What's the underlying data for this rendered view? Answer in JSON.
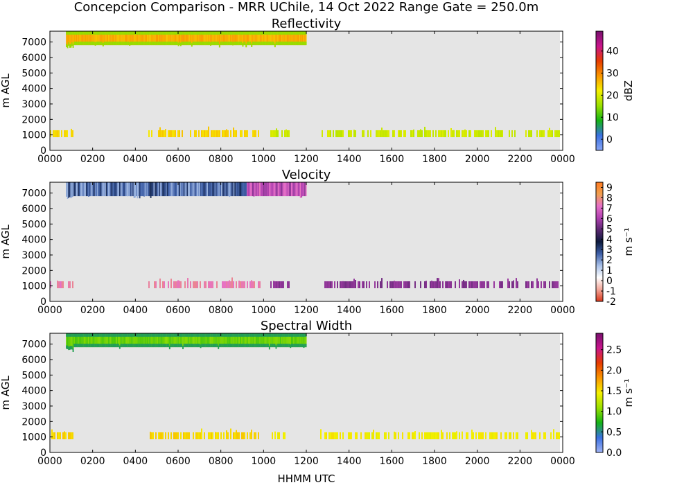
{
  "suptitle": "Concepcion Comparison - MRR UChile, 14 Oct 2022 Range Gate = 250.0m",
  "xlabel": "HHMM UTC",
  "colors": {
    "background": "#e5e5e5",
    "nodata": "#ffffff"
  },
  "chart_data": [
    {
      "type": "heatmap",
      "title": "Reflectivity",
      "ylabel": "m AGL",
      "xlim_hours": [
        0,
        24
      ],
      "ylim_m": [
        0,
        7700
      ],
      "x_ticks": [
        "0000",
        "0200",
        "0400",
        "0600",
        "0800",
        "1000",
        "1200",
        "1400",
        "1600",
        "1800",
        "2000",
        "2200",
        "0000"
      ],
      "y_ticks": [
        "0",
        "1000",
        "2000",
        "3000",
        "4000",
        "5000",
        "6000",
        "7000"
      ],
      "colorbar": {
        "label": "dBZ",
        "range": [
          -5,
          49
        ],
        "ticks": [
          "0",
          "10",
          "20",
          "30",
          "40"
        ],
        "tick_values": [
          0,
          10,
          20,
          30,
          40
        ],
        "colormap": [
          "#88a6f5",
          "#3a70e0",
          "#14b414",
          "#9ae000",
          "#f5f000",
          "#fa9600",
          "#e63c00",
          "#c8148c",
          "#78106e"
        ]
      },
      "upper_layer": {
        "start_hour": 0.75,
        "end_hour": 12.0,
        "base_m": 6800,
        "top_m": 7700,
        "core_value": 27,
        "edge_value": 15
      },
      "lower_layer": {
        "start_hour": 0.0,
        "end_hour": 24.0,
        "base_m": 850,
        "top_m": 1300,
        "early_value": 24,
        "late_value": 19
      }
    },
    {
      "type": "heatmap",
      "title": "Velocity",
      "ylabel": "m s⁻¹",
      "yaxis_label": "m AGL",
      "xlim_hours": [
        0,
        24
      ],
      "ylim_m": [
        0,
        7700
      ],
      "x_ticks": [
        "0000",
        "0200",
        "0400",
        "0600",
        "0800",
        "1000",
        "1200",
        "1400",
        "1600",
        "1800",
        "2000",
        "2200",
        "0000"
      ],
      "y_ticks": [
        "0",
        "1000",
        "2000",
        "3000",
        "4000",
        "5000",
        "6000",
        "7000"
      ],
      "colorbar": {
        "label": "m s⁻¹",
        "range": [
          -2,
          9.5
        ],
        "ticks": [
          "-2",
          "-1",
          "0",
          "1",
          "2",
          "3",
          "4",
          "5",
          "6",
          "7",
          "8",
          "9"
        ],
        "tick_values": [
          -2,
          -1,
          0,
          1,
          2,
          3,
          4,
          5,
          6,
          7,
          8,
          9
        ],
        "colormap": [
          "#d8361a",
          "#f3a79a",
          "#ffffff",
          "#a8c0e8",
          "#3e5fa8",
          "#0c1a3c",
          "#5a2870",
          "#b040b0",
          "#e670c8",
          "#f0a050",
          "#ff7a20"
        ]
      },
      "upper_layer": {
        "start_hour": 0.75,
        "end_hour": 12.0,
        "base_m": 6800,
        "top_m": 7700,
        "core_value": 2.5,
        "late_value": 6.5
      },
      "lower_layer": {
        "start_hour": 0.0,
        "end_hour": 24.0,
        "base_m": 850,
        "top_m": 1300,
        "early_value": 7.5,
        "late_value": 5.5
      }
    },
    {
      "type": "heatmap",
      "title": "Spectral Width",
      "ylabel": "m s⁻¹",
      "yaxis_label": "m AGL",
      "xlim_hours": [
        0,
        24
      ],
      "ylim_m": [
        0,
        7700
      ],
      "x_ticks": [
        "0000",
        "0200",
        "0400",
        "0600",
        "0800",
        "1000",
        "1200",
        "1400",
        "1600",
        "1800",
        "2000",
        "2200",
        "0000"
      ],
      "y_ticks": [
        "0",
        "1000",
        "2000",
        "3000",
        "4000",
        "5000",
        "6000",
        "7000"
      ],
      "colorbar": {
        "label": "m s⁻¹",
        "range": [
          0,
          2.9
        ],
        "ticks": [
          "0.0",
          "0.5",
          "1.0",
          "1.5",
          "2.0",
          "2.5"
        ],
        "tick_values": [
          0,
          0.5,
          1.0,
          1.5,
          2.0,
          2.5
        ],
        "colormap": [
          "#a0b4f5",
          "#3a70e0",
          "#14b414",
          "#9ae000",
          "#f5f000",
          "#fa9600",
          "#e63c00",
          "#c8148c",
          "#78106e"
        ]
      },
      "upper_layer": {
        "start_hour": 0.75,
        "end_hour": 12.0,
        "base_m": 6800,
        "top_m": 7700,
        "core_value": 0.95,
        "edge_value": 0.6
      },
      "lower_layer": {
        "start_hour": 0.0,
        "end_hour": 24.0,
        "base_m": 850,
        "top_m": 1300,
        "early_value": 1.55,
        "late_value": 1.45
      }
    }
  ]
}
